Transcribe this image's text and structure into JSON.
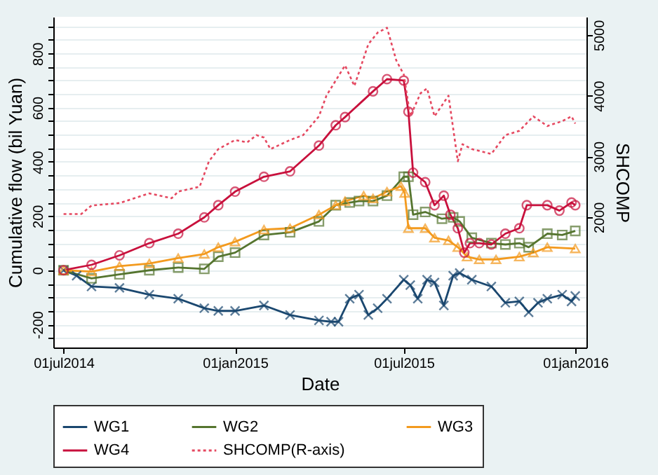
{
  "chart_data": {
    "type": "line",
    "xlabel": "Date",
    "ylabel": "Cumulative flow (bil Yuan)",
    "y2label": "SHCOMP",
    "xlim": [
      "2014-06-20",
      "2016-01-13"
    ],
    "xticks": [
      {
        "value": "2014-07-01",
        "label": "01jul2014"
      },
      {
        "value": "2015-01-01",
        "label": "01jan2015"
      },
      {
        "value": "2015-07-01",
        "label": "01jul2015"
      },
      {
        "value": "2016-01-01",
        "label": "01jan2016"
      }
    ],
    "ylim": [
      -285,
      935
    ],
    "yticks": [
      {
        "value": -250,
        "label": null
      },
      -200,
      {
        "value": -150,
        "label": null
      },
      {
        "value": -100,
        "label": null
      },
      {
        "value": -50,
        "label": null
      },
      0,
      {
        "value": 50,
        "label": null
      },
      {
        "value": 100,
        "label": null
      },
      {
        "value": 150,
        "label": null
      },
      200,
      {
        "value": 250,
        "label": null
      },
      {
        "value": 300,
        "label": null
      },
      {
        "value": 350,
        "label": null
      },
      400,
      {
        "value": 450,
        "label": null
      },
      {
        "value": 500,
        "label": null
      },
      {
        "value": 550,
        "label": null
      },
      600,
      {
        "value": 650,
        "label": null
      },
      {
        "value": 700,
        "label": null
      },
      {
        "value": 750,
        "label": null
      },
      800,
      {
        "value": 850,
        "label": null
      },
      {
        "value": 900,
        "label": null
      }
    ],
    "y2lim": [
      -150,
      5300
    ],
    "y2ticks": [
      2000,
      3000,
      4000,
      5000
    ],
    "grid": "y",
    "legend": "bottom",
    "series": [
      {
        "name": "WG1",
        "color": "#1a476f",
        "marker": "cross",
        "line_style": "solid",
        "x": [
          "2014-07-01",
          "2014-07-15",
          "2014-07-31",
          "2014-08-30",
          "2014-10-01",
          "2014-11-01",
          "2014-11-29",
          "2014-12-14",
          "2015-01-01",
          "2015-02-01",
          "2015-03-01",
          "2015-04-01",
          "2015-04-14",
          "2015-04-22",
          "2015-05-04",
          "2015-05-14",
          "2015-05-24",
          "2015-06-03",
          "2015-06-13",
          "2015-07-01",
          "2015-07-08",
          "2015-07-16",
          "2015-07-26",
          "2015-08-03",
          "2015-08-13",
          "2015-08-23",
          "2015-08-30",
          "2015-09-12",
          "2015-10-03",
          "2015-10-18",
          "2015-11-02",
          "2015-11-12",
          "2015-11-22",
          "2015-12-02",
          "2015-12-18",
          "2015-12-28",
          "2016-01-01"
        ],
        "values": [
          0,
          -20,
          -60,
          -65,
          -90,
          -105,
          -140,
          -150,
          -150,
          -130,
          -165,
          -185,
          -190,
          -190,
          -105,
          -90,
          -165,
          -140,
          -105,
          -35,
          -55,
          -105,
          -35,
          -45,
          -130,
          -20,
          -10,
          -35,
          -60,
          -120,
          -115,
          -155,
          -120,
          -105,
          -90,
          -115,
          -95
        ]
      },
      {
        "name": "WG2",
        "color": "#55752f",
        "marker": "square",
        "line_style": "solid",
        "x": [
          "2014-07-01",
          "2014-07-31",
          "2014-08-30",
          "2014-10-01",
          "2014-11-01",
          "2014-11-29",
          "2014-12-14",
          "2015-01-01",
          "2015-02-01",
          "2015-03-01",
          "2015-04-01",
          "2015-04-19",
          "2015-05-04",
          "2015-05-14",
          "2015-05-29",
          "2015-06-13",
          "2015-07-01",
          "2015-07-06",
          "2015-07-11",
          "2015-07-24",
          "2015-08-11",
          "2015-08-23",
          "2015-08-30",
          "2015-09-12",
          "2015-10-03",
          "2015-10-18",
          "2015-11-02",
          "2015-11-12",
          "2015-12-02",
          "2015-12-18",
          "2016-01-01"
        ],
        "values": [
          0,
          -30,
          -15,
          0,
          10,
          5,
          50,
          65,
          130,
          140,
          180,
          240,
          250,
          255,
          255,
          275,
          345,
          345,
          205,
          215,
          190,
          195,
          180,
          120,
          100,
          95,
          100,
          85,
          135,
          130,
          145
        ]
      },
      {
        "name": "WG3",
        "color": "#f39a1e",
        "marker": "triangle",
        "line_style": "solid",
        "x": [
          "2014-07-01",
          "2014-07-31",
          "2014-08-30",
          "2014-10-01",
          "2014-11-01",
          "2014-11-29",
          "2014-12-14",
          "2015-01-01",
          "2015-02-01",
          "2015-03-01",
          "2015-04-01",
          "2015-04-19",
          "2015-04-29",
          "2015-05-19",
          "2015-05-29",
          "2015-06-13",
          "2015-06-28",
          "2015-07-02",
          "2015-07-06",
          "2015-07-24",
          "2015-08-03",
          "2015-08-18",
          "2015-08-28",
          "2015-09-07",
          "2015-09-20",
          "2015-10-08",
          "2015-11-02",
          "2015-11-17",
          "2015-12-02",
          "2016-01-01"
        ],
        "values": [
          0,
          -5,
          15,
          25,
          45,
          60,
          85,
          105,
          150,
          155,
          205,
          240,
          255,
          275,
          265,
          290,
          310,
          285,
          155,
          155,
          120,
          110,
          85,
          50,
          40,
          40,
          50,
          65,
          85,
          80
        ]
      },
      {
        "name": "WG4",
        "color": "#c8103c",
        "marker": "circle",
        "line_style": "solid",
        "x": [
          "2014-07-01",
          "2014-07-31",
          "2014-08-30",
          "2014-10-01",
          "2014-11-01",
          "2014-11-29",
          "2014-12-14",
          "2015-01-01",
          "2015-02-01",
          "2015-03-01",
          "2015-04-01",
          "2015-04-19",
          "2015-04-29",
          "2015-05-29",
          "2015-06-13",
          "2015-07-01",
          "2015-07-06",
          "2015-07-11",
          "2015-07-24",
          "2015-08-03",
          "2015-08-13",
          "2015-08-20",
          "2015-08-28",
          "2015-09-04",
          "2015-09-10",
          "2015-09-20",
          "2015-10-03",
          "2015-10-18",
          "2015-11-02",
          "2015-11-10",
          "2015-12-02",
          "2015-12-15",
          "2015-12-28",
          "2016-01-01"
        ],
        "values": [
          0,
          20,
          55,
          100,
          135,
          195,
          240,
          290,
          345,
          365,
          460,
          535,
          565,
          660,
          705,
          700,
          585,
          360,
          325,
          240,
          275,
          205,
          155,
          65,
          100,
          100,
          95,
          135,
          155,
          240,
          240,
          220,
          250,
          240
        ]
      },
      {
        "name": "SHCOMP(R-axis)",
        "color": "#e54860",
        "marker": "none",
        "line_style": "dotted",
        "axis": "y2",
        "x": [
          "2014-07-01",
          "2014-07-20",
          "2014-07-31",
          "2014-08-30",
          "2014-10-01",
          "2014-10-25",
          "2014-11-01",
          "2014-11-24",
          "2014-12-04",
          "2014-12-14",
          "2015-01-01",
          "2015-01-14",
          "2015-01-24",
          "2015-02-01",
          "2015-02-08",
          "2015-03-01",
          "2015-03-15",
          "2015-04-01",
          "2015-04-09",
          "2015-04-29",
          "2015-05-09",
          "2015-05-24",
          "2015-06-03",
          "2015-06-13",
          "2015-06-23",
          "2015-07-01",
          "2015-07-08",
          "2015-07-19",
          "2015-07-26",
          "2015-08-03",
          "2015-08-18",
          "2015-08-28",
          "2015-09-02",
          "2015-09-12",
          "2015-10-03",
          "2015-10-18",
          "2015-11-02",
          "2015-11-17",
          "2015-12-02",
          "2015-12-18",
          "2015-12-28",
          "2016-01-01"
        ],
        "values": [
          2050,
          2050,
          2190,
          2230,
          2390,
          2310,
          2420,
          2500,
          2920,
          3120,
          3270,
          3230,
          3350,
          3310,
          3120,
          3270,
          3350,
          3660,
          4000,
          4500,
          4160,
          4850,
          5040,
          5120,
          4580,
          4350,
          3660,
          4040,
          4120,
          3660,
          4000,
          2920,
          3200,
          3120,
          3040,
          3350,
          3420,
          3660,
          3500,
          3580,
          3660,
          3540
        ]
      }
    ]
  }
}
